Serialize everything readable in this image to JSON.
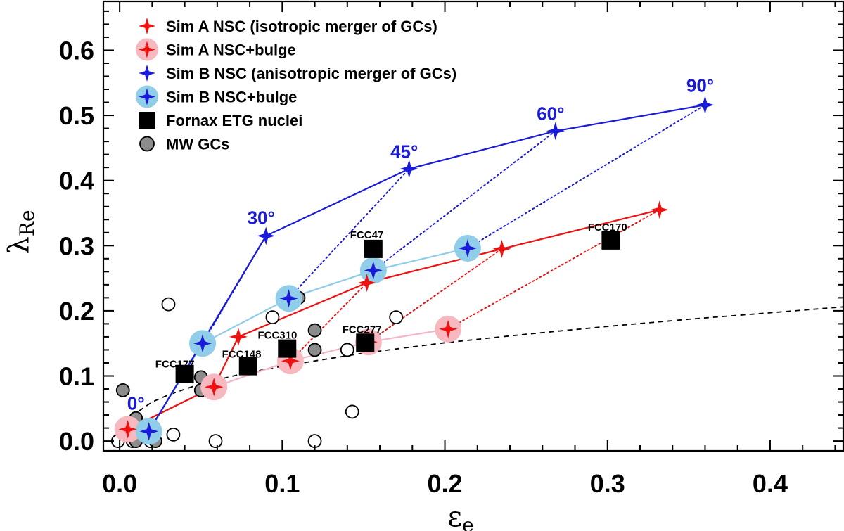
{
  "chart_data": {
    "type": "scatter",
    "xlabel": "ε",
    "xlabel_sub": "e",
    "ylabel": "λ",
    "ylabel_sub": "Re",
    "xlim": [
      -0.01,
      0.445
    ],
    "ylim": [
      -0.015,
      0.675
    ],
    "xticks": [
      0.0,
      0.1,
      0.2,
      0.3,
      0.4
    ],
    "xtick_labels": [
      "0.0",
      "0.1",
      "0.2",
      "0.3",
      "0.4"
    ],
    "yticks": [
      0.0,
      0.1,
      0.2,
      0.3,
      0.4,
      0.5,
      0.6
    ],
    "ytick_labels": [
      "0.0",
      "0.1",
      "0.2",
      "0.3",
      "0.4",
      "0.5",
      "0.6"
    ],
    "grid": false,
    "legend_position": "top-left",
    "colors": {
      "sim_a": "#ee1111",
      "sim_a_halo": "#f7b8c0",
      "sim_a_line_halo": "#f4b6c4",
      "sim_b": "#1a1adb",
      "sim_b_halo": "#8fcde8",
      "fornax": "#000000",
      "mw_filled": "#8c8c8c",
      "dashed": "#000000"
    },
    "legend": [
      {
        "label": "Sim A NSC (isotropic merger of GCs)",
        "marker": "star-red"
      },
      {
        "label": "Sim A NSC+bulge",
        "marker": "star-red-halo"
      },
      {
        "label": "Sim B NSC (anisotropic merger of GCs)",
        "marker": "star-blue"
      },
      {
        "label": "Sim B NSC+bulge",
        "marker": "star-blue-halo"
      },
      {
        "label": "Fornax ETG nuclei",
        "marker": "square"
      },
      {
        "label": "MW GCs",
        "marker": "circle-gray"
      }
    ],
    "series": [
      {
        "name": "Sim A NSC (isotropic merger of GCs)",
        "x": [
          0.005,
          0.058,
          0.073,
          0.152,
          0.235,
          0.332
        ],
        "y": [
          0.018,
          0.083,
          0.16,
          0.243,
          0.295,
          0.355
        ]
      },
      {
        "name": "Sim A NSC+bulge",
        "x": [
          0.005,
          0.058,
          0.105,
          0.153,
          0.202
        ],
        "y": [
          0.018,
          0.083,
          0.123,
          0.152,
          0.172
        ]
      },
      {
        "name": "Sim B NSC (anisotropic merger of GCs)",
        "x": [
          0.018,
          0.09,
          0.178,
          0.268,
          0.36
        ],
        "y": [
          0.015,
          0.315,
          0.418,
          0.476,
          0.516
        ]
      },
      {
        "name": "Sim B NSC+bulge",
        "x": [
          0.018,
          0.051,
          0.104,
          0.156,
          0.214
        ],
        "y": [
          0.015,
          0.15,
          0.219,
          0.262,
          0.296
        ]
      },
      {
        "name": "Fornax ETG nuclei",
        "x": [
          0.04,
          0.079,
          0.103,
          0.151,
          0.156,
          0.302
        ],
        "y": [
          0.103,
          0.115,
          0.142,
          0.151,
          0.295,
          0.308
        ]
      },
      {
        "name": "MW GCs",
        "x": [
          0.002,
          0.01,
          0.01,
          0.01,
          0.022,
          0.05,
          0.05,
          0.11,
          0.12,
          0.12
        ],
        "y": [
          0.078,
          0.035,
          0.015,
          0.0,
          0.0,
          0.098,
          0.078,
          0.22,
          0.17,
          0.14
        ]
      },
      {
        "name": "MW GCs (open)",
        "x": [
          -0.001,
          0.008,
          0.019,
          0.03,
          0.033,
          0.059,
          0.094,
          0.12,
          0.14,
          0.143,
          0.17
        ],
        "y": [
          0.0,
          0.0,
          0.0,
          0.21,
          0.01,
          0.0,
          0.19,
          0.0,
          0.14,
          0.045,
          0.19
        ]
      },
      {
        "name": "reference dashed curve",
        "x": [
          0.0,
          0.005,
          0.01,
          0.02,
          0.03,
          0.05,
          0.075,
          0.1,
          0.15,
          0.2,
          0.25,
          0.3,
          0.35,
          0.4,
          0.445
        ],
        "y": [
          0.0,
          0.031,
          0.043,
          0.06,
          0.071,
          0.088,
          0.103,
          0.115,
          0.135,
          0.151,
          0.164,
          0.176,
          0.187,
          0.197,
          0.206
        ]
      }
    ],
    "connectors": [
      {
        "from": [
          0.058,
          0.083
        ],
        "to": [
          0.073,
          0.16
        ],
        "color": "sim_a"
      },
      {
        "from": [
          0.105,
          0.123
        ],
        "to": [
          0.152,
          0.243
        ],
        "color": "sim_a"
      },
      {
        "from": [
          0.153,
          0.152
        ],
        "to": [
          0.235,
          0.295
        ],
        "color": "sim_a"
      },
      {
        "from": [
          0.202,
          0.172
        ],
        "to": [
          0.332,
          0.355
        ],
        "color": "sim_a"
      },
      {
        "from": [
          0.051,
          0.15
        ],
        "to": [
          0.09,
          0.315
        ],
        "color": "sim_b"
      },
      {
        "from": [
          0.104,
          0.219
        ],
        "to": [
          0.178,
          0.418
        ],
        "color": "sim_b"
      },
      {
        "from": [
          0.156,
          0.262
        ],
        "to": [
          0.268,
          0.476
        ],
        "color": "sim_b"
      },
      {
        "from": [
          0.214,
          0.296
        ],
        "to": [
          0.36,
          0.516
        ],
        "color": "sim_b"
      }
    ],
    "angle_labels": [
      {
        "text": "0°",
        "x": 0.01,
        "y": 0.048
      },
      {
        "text": "30°",
        "x": 0.087,
        "y": 0.333
      },
      {
        "text": "45°",
        "x": 0.175,
        "y": 0.435
      },
      {
        "text": "60°",
        "x": 0.265,
        "y": 0.493
      },
      {
        "text": "90°",
        "x": 0.357,
        "y": 0.536
      }
    ],
    "annotations": [
      {
        "text": "FCC177",
        "x": 0.034,
        "y": 0.113
      },
      {
        "text": "FCC148",
        "x": 0.075,
        "y": 0.128
      },
      {
        "text": "FCC310",
        "x": 0.097,
        "y": 0.157
      },
      {
        "text": "FCC277",
        "x": 0.149,
        "y": 0.166
      },
      {
        "text": "FCC47",
        "x": 0.152,
        "y": 0.311
      },
      {
        "text": "FCC170",
        "x": 0.3,
        "y": 0.323
      }
    ]
  }
}
